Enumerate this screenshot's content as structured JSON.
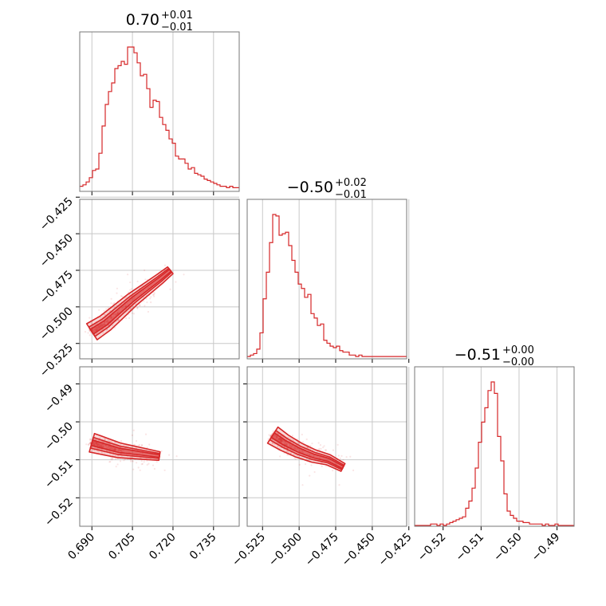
{
  "chart_data": [
    {
      "type": "histogram",
      "panel": "hist-param-1",
      "title": "0.70",
      "title_sup": "+0.01",
      "title_sub": "−0.01",
      "xlim": [
        0.6855,
        0.7445
      ],
      "xticks": [
        0.69,
        0.705,
        0.72,
        0.735
      ],
      "xtick_labels": [
        "0.690",
        "0.705",
        "0.720",
        "0.735"
      ],
      "grid": true,
      "color": "#d62728",
      "bin_start": 0.6855,
      "bin_width": 0.00118,
      "counts": [
        3,
        4,
        6,
        9,
        14,
        15,
        26,
        45,
        60,
        69,
        75,
        85,
        87,
        90,
        88,
        100,
        100,
        96,
        89,
        80,
        81,
        71,
        58,
        63,
        62,
        51,
        46,
        42,
        36,
        33,
        24,
        22,
        22,
        19,
        15,
        16,
        12,
        11,
        10,
        8,
        7,
        6,
        5,
        4,
        3,
        3,
        2,
        3,
        2,
        2
      ]
    },
    {
      "type": "histogram",
      "panel": "hist-param-2",
      "title": "−0.50",
      "title_sup": "+0.02",
      "title_sub": "−0.01",
      "xlim": [
        -0.5355,
        -0.4265
      ],
      "xticks": [
        -0.525,
        -0.5,
        -0.475,
        -0.45,
        -0.425
      ],
      "xtick_labels": [
        "−0.525",
        "−0.500",
        "−0.475",
        "−0.450",
        "−0.425"
      ],
      "grid": true,
      "color": "#d62728",
      "bin_start": -0.5355,
      "bin_width": 0.00218,
      "counts": [
        1,
        2,
        3,
        6,
        17,
        40,
        58,
        78,
        97,
        96,
        83,
        84,
        85,
        76,
        66,
        58,
        50,
        47,
        41,
        43,
        30,
        27,
        22,
        23,
        12,
        10,
        8,
        7,
        8,
        5,
        4,
        4,
        2,
        2,
        1,
        2,
        1,
        1,
        1,
        1,
        1,
        1,
        1,
        1,
        1,
        1,
        1,
        1,
        1,
        1
      ]
    },
    {
      "type": "histogram",
      "panel": "hist-param-3",
      "title": "−0.51",
      "title_sup": "+0.00",
      "title_sub": "−0.00",
      "xlim": [
        -0.5275,
        -0.4855
      ],
      "xticks": [
        -0.52,
        -0.51,
        -0.5,
        -0.49
      ],
      "xtick_labels": [
        "−0.52",
        "−0.51",
        "−0.50",
        "−0.49"
      ],
      "grid": true,
      "color": "#d62728",
      "bin_start": -0.5275,
      "bin_width": 0.00084,
      "counts": [
        0,
        0,
        0,
        0,
        0,
        1,
        1,
        0,
        1,
        0,
        1,
        2,
        3,
        4,
        5,
        6,
        12,
        17,
        26,
        40,
        58,
        72,
        82,
        94,
        100,
        92,
        62,
        45,
        22,
        10,
        7,
        5,
        3,
        3,
        2,
        2,
        1,
        1,
        1,
        1,
        0,
        1,
        0,
        0,
        1,
        0,
        0,
        0,
        0,
        0
      ]
    },
    {
      "type": "contour-scatter",
      "panel": "2d-param1-param2",
      "x_param": "param-1",
      "y_param": "param-2",
      "xlim": [
        0.6855,
        0.7445
      ],
      "ylim": [
        -0.5355,
        -0.4265
      ],
      "xticks": [
        0.69,
        0.705,
        0.72,
        0.735
      ],
      "yticks": [
        -0.525,
        -0.5,
        -0.475,
        -0.45,
        -0.425
      ],
      "ytick_labels": [
        "−0.525",
        "−0.500",
        "−0.475",
        "−0.450",
        "−0.425"
      ],
      "grid": true,
      "color": "#d62728",
      "contour_ridge": [
        [
          0.69,
          -0.517
        ],
        [
          0.695,
          -0.511
        ],
        [
          0.7,
          -0.503
        ],
        [
          0.705,
          -0.495
        ],
        [
          0.71,
          -0.488
        ],
        [
          0.715,
          -0.481
        ],
        [
          0.719,
          -0.475
        ]
      ],
      "contour_levels": [
        "inner",
        "middle",
        "outer"
      ]
    },
    {
      "type": "contour-scatter",
      "panel": "2d-param1-param3",
      "x_param": "param-1",
      "y_param": "param-3",
      "xlim": [
        0.6855,
        0.7445
      ],
      "ylim": [
        -0.5275,
        -0.4855
      ],
      "xticks": [
        0.69,
        0.705,
        0.72,
        0.735
      ],
      "yticks": [
        -0.52,
        -0.51,
        -0.5,
        -0.49
      ],
      "ytick_labels": [
        "−0.52",
        "−0.51",
        "−0.50",
        "−0.49"
      ],
      "grid": true,
      "color": "#d62728",
      "contour_ridge": [
        [
          0.69,
          -0.5055
        ],
        [
          0.695,
          -0.5065
        ],
        [
          0.7,
          -0.5075
        ],
        [
          0.705,
          -0.508
        ],
        [
          0.71,
          -0.5085
        ],
        [
          0.715,
          -0.509
        ]
      ],
      "contour_levels": [
        "inner",
        "middle",
        "outer"
      ]
    },
    {
      "type": "contour-scatter",
      "panel": "2d-param2-param3",
      "x_param": "param-2",
      "y_param": "param-3",
      "xlim": [
        -0.5355,
        -0.4265
      ],
      "ylim": [
        -0.5275,
        -0.4855
      ],
      "xticks": [
        -0.525,
        -0.5,
        -0.475,
        -0.45,
        -0.425
      ],
      "yticks": [
        -0.52,
        -0.51,
        -0.5,
        -0.49
      ],
      "grid": true,
      "color": "#d62728",
      "contour_ridge": [
        [
          -0.518,
          -0.5035
        ],
        [
          -0.51,
          -0.5055
        ],
        [
          -0.5,
          -0.5075
        ],
        [
          -0.49,
          -0.509
        ],
        [
          -0.48,
          -0.51
        ],
        [
          -0.47,
          -0.512
        ]
      ],
      "contour_levels": [
        "inner",
        "middle",
        "outer"
      ]
    }
  ]
}
